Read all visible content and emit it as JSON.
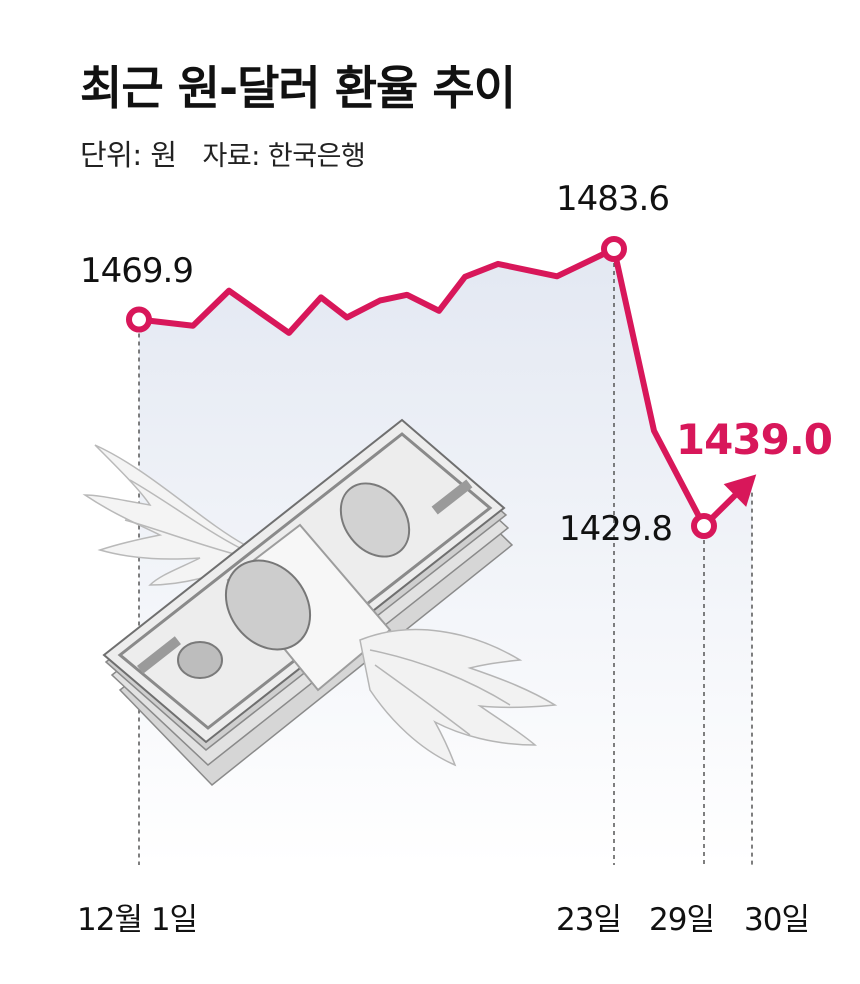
{
  "header": {
    "title": "최근 원-달러 환율 추이",
    "unit": "단위: 원",
    "source": "자료: 한국은행"
  },
  "colors": {
    "line": "#d8175a",
    "highlight": "#d8175a",
    "guide": "#555555",
    "area_top": "#e3e8f2",
    "area_bottom": "#ffffff"
  },
  "illustration": {
    "icon": "winged-dollar-bundle-icon"
  },
  "chart_data": {
    "type": "line",
    "title": "최근 원-달러 환율 추이",
    "unit": "원",
    "x": [
      0,
      1,
      2,
      3,
      4,
      5,
      6,
      7,
      8,
      9,
      10,
      11,
      12,
      13,
      14,
      15
    ],
    "y": [
      1469.9,
      1468.7,
      1475.5,
      1467.3,
      1474.2,
      1470.3,
      1473.6,
      1474.7,
      1471.6,
      1478.2,
      1480.7,
      1478.3,
      1483.6,
      1448.3,
      1429.8,
      1439.0
    ],
    "ylim": [
      1420,
      1490
    ],
    "x_ticks": [
      {
        "index": 0,
        "label": "12월 1일"
      },
      {
        "index": 12,
        "label": "23일"
      },
      {
        "index": 14,
        "label": "29일"
      },
      {
        "index": 15,
        "label": "30일"
      }
    ],
    "annotations": [
      {
        "index": 0,
        "label": "1469.9",
        "marker": "circle"
      },
      {
        "index": 12,
        "label": "1483.6",
        "marker": "circle"
      },
      {
        "index": 14,
        "label": "1429.8",
        "marker": "circle"
      },
      {
        "index": 15,
        "label": "1439.0",
        "marker": "arrow",
        "highlight": true
      }
    ],
    "grid": false,
    "legend": "none"
  }
}
